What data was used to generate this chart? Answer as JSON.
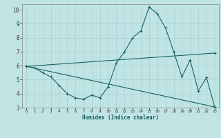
{
  "xlabel": "Humidex (Indice chaleur)",
  "bg_color": "#c0e4e4",
  "line_color": "#1a6060",
  "grid_color": "#a8d0d0",
  "xlim": [
    -0.5,
    23.5
  ],
  "ylim": [
    3,
    10.4
  ],
  "xticks": [
    0,
    1,
    2,
    3,
    4,
    5,
    6,
    7,
    8,
    9,
    10,
    11,
    12,
    13,
    14,
    15,
    16,
    17,
    18,
    19,
    20,
    21,
    22,
    23
  ],
  "yticks": [
    3,
    4,
    5,
    6,
    7,
    8,
    9,
    10
  ],
  "line1_x": [
    0,
    1,
    2,
    3,
    4,
    5,
    6,
    7,
    8,
    9,
    10,
    11,
    12,
    13,
    14,
    15,
    16,
    17,
    18,
    19,
    20,
    21,
    22,
    23
  ],
  "line1_y": [
    5.95,
    5.85,
    5.5,
    5.2,
    4.6,
    4.0,
    3.7,
    3.6,
    3.9,
    3.7,
    4.5,
    6.2,
    7.0,
    8.0,
    8.5,
    10.2,
    9.7,
    8.7,
    7.0,
    5.2,
    6.4,
    4.2,
    5.15,
    3.05
  ],
  "line2_x": [
    0,
    23
  ],
  "line2_y": [
    5.95,
    3.05
  ],
  "line3_x": [
    0,
    23
  ],
  "line3_y": [
    5.95,
    6.9
  ]
}
